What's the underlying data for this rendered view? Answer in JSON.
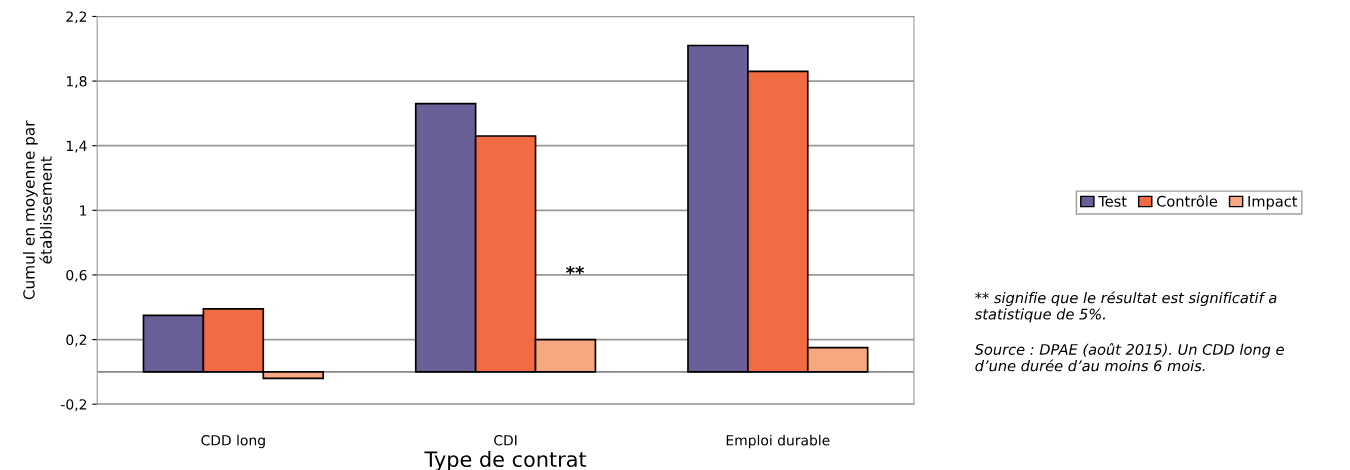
{
  "chart_data": {
    "type": "bar",
    "xlabel": "Type de contrat",
    "ylabel": "Cumul en moyenne par\nétablissement",
    "categories": [
      "CDD long",
      "CDI",
      "Emploi durable"
    ],
    "series": [
      {
        "name": "Test",
        "color": "#6a5f96",
        "values": [
          0.35,
          1.66,
          2.02
        ]
      },
      {
        "name": "Contrôle",
        "color": "#f26b43",
        "values": [
          0.39,
          1.46,
          1.86
        ]
      },
      {
        "name": "Impact",
        "color": "#f6a880",
        "values": [
          -0.04,
          0.2,
          0.15
        ]
      }
    ],
    "ylim": [
      -0.2,
      2.2
    ],
    "yticks": [
      {
        "value": -0.2,
        "label": "-0,2"
      },
      {
        "value": 0.2,
        "label": "0,2"
      },
      {
        "value": 0.6,
        "label": "0,6"
      },
      1,
      {
        "value": 1.4,
        "label": "1,4"
      },
      {
        "value": 1.8,
        "label": "1,8"
      },
      {
        "value": 2.2,
        "label": "2,2"
      }
    ],
    "ref_lines": [
      {
        "axis": "y",
        "value": 0,
        "color": "#888888"
      }
    ],
    "grid": "y",
    "legend": "right",
    "annotations": [
      "**",
      "** signifie que le résultat est significatif a\nstatistique de 5%.",
      "Source : DPAE (août 2015). Un CDD long e\nd’une durée d’au moins 6 mois."
    ]
  }
}
